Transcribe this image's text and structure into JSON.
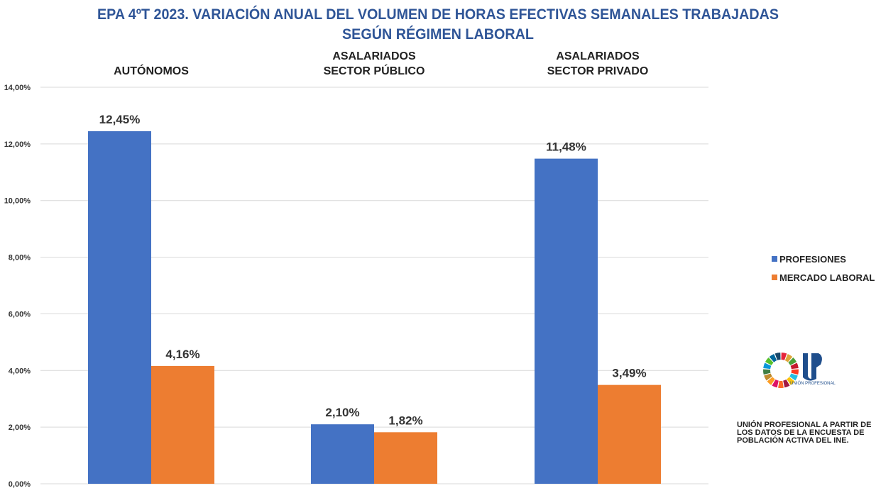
{
  "chart_data": {
    "type": "bar",
    "title": [
      "EPA 4ºT 2023. VARIACIÓN ANUAL DEL VOLUMEN DE HORAS EFECTIVAS SEMANALES TRABAJADAS",
      "SEGÚN RÉGIMEN LABORAL"
    ],
    "categories": [
      [
        "AUTÓNOMOS"
      ],
      [
        "ASALARIADOS",
        "SECTOR PÚBLICO"
      ],
      [
        "ASALARIADOS",
        "SECTOR PRIVADO"
      ]
    ],
    "series": [
      {
        "name": "PROFESIONES",
        "color": "#4472c4",
        "values": [
          12.45,
          2.1,
          11.48
        ],
        "labels": [
          "12,45%",
          "2,10%",
          "11,48%"
        ]
      },
      {
        "name": "MERCADO LABORAL",
        "color": "#ed7d31",
        "values": [
          4.16,
          1.82,
          3.49
        ],
        "labels": [
          "4,16%",
          "1,82%",
          "3,49%"
        ]
      }
    ],
    "ylim": [
      0,
      14
    ],
    "yticks": [
      "0,00%",
      "2,00%",
      "4,00%",
      "6,00%",
      "8,00%",
      "10,00%",
      "12,00%",
      "14,00%"
    ],
    "grid": true,
    "legend": "right"
  },
  "source": "UNIÓN PROFESIONAL A PARTIR DE LOS DATOS DE LA ENCUESTA DE POBLACIÓN ACTIVA DEL INE.",
  "logo_text": "UNIÓN PROFESIONAL"
}
